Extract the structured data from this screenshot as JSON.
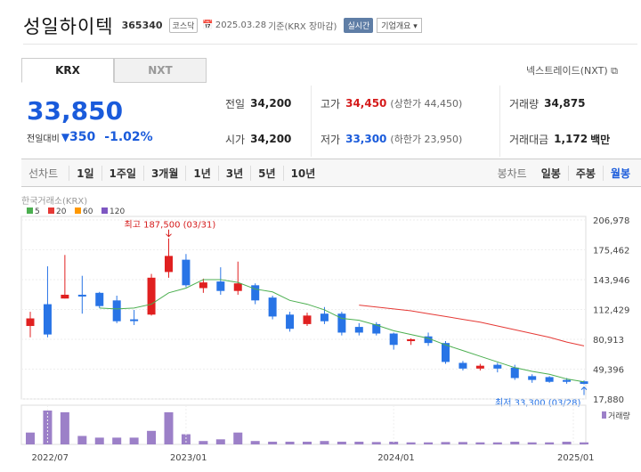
{
  "header": {
    "company": "성일하이텍",
    "code": "365340",
    "market": "코스닥",
    "date": "2025.03.28",
    "basis": "기준(KRX 장마감)",
    "realtime": "실시간",
    "company_info": "기업개요",
    "cal_icon": "calendar-icon"
  },
  "tabs": [
    "KRX",
    "NXT"
  ],
  "nxt_link": "넥스트레이드(NXT)",
  "price": {
    "current": "33,850",
    "change_label": "전일대비",
    "change": "350",
    "change_pct": "-1.02%"
  },
  "stats": {
    "prev_close_label": "전일",
    "prev_close": "34,200",
    "high_label": "고가",
    "high": "34,450",
    "upper_limit_label": "(상한가 44,450)",
    "volume_label": "거래량",
    "volume": "34,875",
    "open_label": "시가",
    "open": "34,200",
    "low_label": "저가",
    "low": "33,300",
    "lower_limit_label": "(하한가 23,950)",
    "amount_label": "거래대금",
    "amount": "1,172",
    "amount_unit": "백만"
  },
  "period": {
    "label": "선차트",
    "items": [
      "1일",
      "1주일",
      "3개월",
      "1년",
      "3년",
      "5년",
      "10년"
    ],
    "candle_label": "봉차트",
    "candle_items": [
      "일봉",
      "주봉",
      "월봉"
    ],
    "candle_active": "월봉"
  },
  "chart_data": {
    "type": "candlestick",
    "source": "한국거래소(KRX)",
    "legend": [
      {
        "name": "5",
        "color": "#4caf50"
      },
      {
        "name": "20",
        "color": "#e53935"
      },
      {
        "name": "60",
        "color": "#ff9800"
      },
      {
        "name": "120",
        "color": "#7e57c2"
      }
    ],
    "y_ticks": [
      206978,
      175462,
      143946,
      112429,
      80913,
      49396,
      17880
    ],
    "x_ticks": [
      "2022/07",
      "2023/01",
      "2024/01",
      "2025/01"
    ],
    "max_label": "최고 187,500 (03/31)",
    "min_label": "최저 33,300 (03/28)",
    "volume_label": "거래량",
    "ylim": [
      17880,
      206978
    ],
    "candles": [
      {
        "o": 95000,
        "c": 103000,
        "h": 110000,
        "l": 83000,
        "v": 0.35
      },
      {
        "o": 118000,
        "c": 86000,
        "h": 158000,
        "l": 83000,
        "v": 1.0
      },
      {
        "o": 124000,
        "c": 128000,
        "h": 170000,
        "l": 124000,
        "v": 0.95
      },
      {
        "o": 128000,
        "c": 127000,
        "h": 148000,
        "l": 108000,
        "v": 0.25
      },
      {
        "o": 130000,
        "c": 116000,
        "h": 131000,
        "l": 114000,
        "v": 0.2
      },
      {
        "o": 122000,
        "c": 100000,
        "h": 127000,
        "l": 98000,
        "v": 0.2
      },
      {
        "o": 102000,
        "c": 101000,
        "h": 112000,
        "l": 96000,
        "v": 0.2
      },
      {
        "o": 107000,
        "c": 146000,
        "h": 150000,
        "l": 106000,
        "v": 0.4
      },
      {
        "o": 152000,
        "c": 169000,
        "h": 187500,
        "l": 146000,
        "v": 0.95
      },
      {
        "o": 165000,
        "c": 138000,
        "h": 171000,
        "l": 136000,
        "v": 0.3
      },
      {
        "o": 135000,
        "c": 141000,
        "h": 145000,
        "l": 130000,
        "v": 0.1
      },
      {
        "o": 142000,
        "c": 132000,
        "h": 157000,
        "l": 128000,
        "v": 0.15
      },
      {
        "o": 132000,
        "c": 140000,
        "h": 163000,
        "l": 128000,
        "v": 0.35
      },
      {
        "o": 138000,
        "c": 122000,
        "h": 140000,
        "l": 118000,
        "v": 0.1
      },
      {
        "o": 125000,
        "c": 105000,
        "h": 127000,
        "l": 102000,
        "v": 0.08
      },
      {
        "o": 107000,
        "c": 92000,
        "h": 110000,
        "l": 89000,
        "v": 0.08
      },
      {
        "o": 97000,
        "c": 106000,
        "h": 109000,
        "l": 95000,
        "v": 0.08
      },
      {
        "o": 108000,
        "c": 100000,
        "h": 115000,
        "l": 97000,
        "v": 0.1
      },
      {
        "o": 108000,
        "c": 88000,
        "h": 110000,
        "l": 85000,
        "v": 0.08
      },
      {
        "o": 94000,
        "c": 88000,
        "h": 98000,
        "l": 85000,
        "v": 0.08
      },
      {
        "o": 97000,
        "c": 87000,
        "h": 99000,
        "l": 85000,
        "v": 0.07
      },
      {
        "o": 87000,
        "c": 75000,
        "h": 88000,
        "l": 70000,
        "v": 0.08
      },
      {
        "o": 79000,
        "c": 81000,
        "h": 82000,
        "l": 75000,
        "v": 0.06
      },
      {
        "o": 84000,
        "c": 77000,
        "h": 88000,
        "l": 74000,
        "v": 0.06
      },
      {
        "o": 77000,
        "c": 57000,
        "h": 79000,
        "l": 55000,
        "v": 0.07
      },
      {
        "o": 56000,
        "c": 50000,
        "h": 58000,
        "l": 48000,
        "v": 0.07
      },
      {
        "o": 50000,
        "c": 53000,
        "h": 55000,
        "l": 48000,
        "v": 0.06
      },
      {
        "o": 54000,
        "c": 50000,
        "h": 56000,
        "l": 46000,
        "v": 0.06
      },
      {
        "o": 51000,
        "c": 40000,
        "h": 54000,
        "l": 38000,
        "v": 0.08
      },
      {
        "o": 42000,
        "c": 38000,
        "h": 44000,
        "l": 35000,
        "v": 0.06
      },
      {
        "o": 41000,
        "c": 36000,
        "h": 42000,
        "l": 35000,
        "v": 0.06
      },
      {
        "o": 38000,
        "c": 36000,
        "h": 40000,
        "l": 34000,
        "v": 0.08
      },
      {
        "o": 36500,
        "c": 33850,
        "h": 37500,
        "l": 33300,
        "v": 0.06
      }
    ],
    "ma5": [
      null,
      null,
      null,
      null,
      114000,
      113000,
      114000,
      118000,
      130000,
      135000,
      144000,
      144000,
      141000,
      134000,
      131000,
      122000,
      118000,
      112000,
      103000,
      101000,
      96000,
      90000,
      86000,
      82000,
      75000,
      69000,
      63000,
      57000,
      51000,
      47000,
      44000,
      39000,
      36000
    ],
    "ma20": [
      null,
      null,
      null,
      null,
      null,
      null,
      null,
      null,
      null,
      null,
      null,
      null,
      null,
      null,
      null,
      null,
      null,
      null,
      null,
      117000,
      115000,
      113000,
      111000,
      108000,
      105000,
      102000,
      99000,
      95000,
      91000,
      87000,
      83000,
      78000,
      74000
    ]
  }
}
